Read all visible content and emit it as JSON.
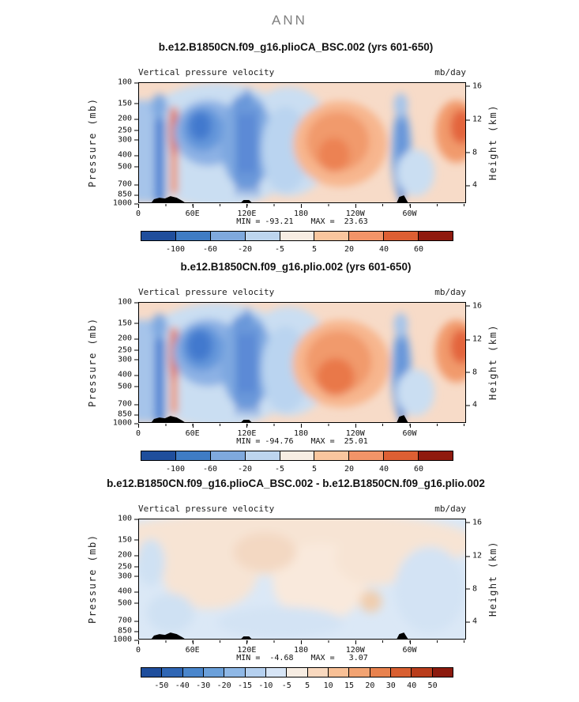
{
  "figure_title": "ANN",
  "chart_data": [
    {
      "type": "heatmap",
      "title": "b.e12.B1850CN.f09_g16.plioCA_BSC.002 (yrs 601-650)",
      "field_label": "Vertical pressure velocity",
      "units": "mb/day",
      "xticks": [
        "0",
        "60E",
        "120E",
        "180",
        "120W",
        "60W"
      ],
      "ylabel_left": "Pressure (mb)",
      "yticks_left": [
        "100",
        "150",
        "200",
        "250",
        "300",
        "400",
        "500",
        "700",
        "850",
        "1000"
      ],
      "ylabel_right": "Height (km)",
      "yticks_right": [
        "16",
        "12",
        "8",
        "4"
      ],
      "y_range_mb": [
        100,
        1000
      ],
      "min": -93.21,
      "max": 23.63,
      "min_label": "MIN = -93.21",
      "max_label": "MAX =  23.63",
      "contour_levels": [
        -100,
        -60,
        -20,
        -5,
        5,
        20,
        40,
        60
      ],
      "colorbar_ticks": [
        "-100",
        "-60",
        "-20",
        "-5",
        "5",
        "20",
        "40",
        "60"
      ],
      "colorbar_colors": [
        "#1f4e9c",
        "#3f7cc4",
        "#7fa9dd",
        "#bdd5ee",
        "#f7ede3",
        "#f9c69e",
        "#f29468",
        "#dd5f33",
        "#8f1a0e"
      ],
      "description": "Longitude-pressure section of annual-mean vertical pressure velocity. Strong negative (blue, ascent) centers over 60E-180 and in a narrow column near 60W; positive (orange, subsidence) centers over 180-120W and near the right edge; black surface topography near 20-50E, 120E and 60W."
    },
    {
      "type": "heatmap",
      "title": "b.e12.B1850CN.f09_g16.plio.002 (yrs 601-650)",
      "field_label": "Vertical pressure velocity",
      "units": "mb/day",
      "xticks": [
        "0",
        "60E",
        "120E",
        "180",
        "120W",
        "60W"
      ],
      "ylabel_left": "Pressure (mb)",
      "yticks_left": [
        "100",
        "150",
        "200",
        "250",
        "300",
        "400",
        "500",
        "700",
        "850",
        "1000"
      ],
      "ylabel_right": "Height (km)",
      "yticks_right": [
        "16",
        "12",
        "8",
        "4"
      ],
      "y_range_mb": [
        100,
        1000
      ],
      "min": -94.76,
      "max": 25.01,
      "min_label": "MIN = -94.76",
      "max_label": "MAX =  25.01",
      "contour_levels": [
        -100,
        -60,
        -20,
        -5,
        5,
        20,
        40,
        60
      ],
      "colorbar_ticks": [
        "-100",
        "-60",
        "-20",
        "-5",
        "5",
        "20",
        "40",
        "60"
      ],
      "colorbar_colors": [
        "#1f4e9c",
        "#3f7cc4",
        "#7fa9dd",
        "#bdd5ee",
        "#f7ede3",
        "#f9c69e",
        "#f29468",
        "#dd5f33",
        "#8f1a0e"
      ],
      "description": "Same field for the plio.002 control run: very similar pattern of ascent over the warm pool (60E-180) and near 60W, subsidence over the eastern Pacific (180-120W) and near the right edge."
    },
    {
      "type": "heatmap",
      "title": "b.e12.B1850CN.f09_g16.plioCA_BSC.002 - b.e12.B1850CN.f09_g16.plio.002",
      "field_label": "Vertical pressure velocity",
      "units": "mb/day",
      "xticks": [
        "0",
        "60E",
        "120E",
        "180",
        "120W",
        "60W"
      ],
      "ylabel_left": "Pressure (mb)",
      "yticks_left": [
        "100",
        "150",
        "200",
        "250",
        "300",
        "400",
        "500",
        "700",
        "850",
        "1000"
      ],
      "ylabel_right": "Height (km)",
      "yticks_right": [
        "16",
        "12",
        "8",
        "4"
      ],
      "y_range_mb": [
        100,
        1000
      ],
      "min": -4.68,
      "max": 3.07,
      "min_label": "MIN =  -4.68",
      "max_label": "MAX =   3.07",
      "contour_levels": [
        -50,
        -40,
        -30,
        -20,
        -15,
        -10,
        -5,
        5,
        10,
        15,
        20,
        30,
        40,
        50
      ],
      "colorbar_ticks": [
        "-50",
        "-40",
        "-30",
        "-20",
        "-15",
        "-10",
        "-5",
        "5",
        "10",
        "15",
        "20",
        "30",
        "40",
        "50"
      ],
      "colorbar_colors": [
        "#1f4e9c",
        "#2f66b4",
        "#4a86cc",
        "#6ba0da",
        "#8fb8e6",
        "#b5d0ef",
        "#d7e5f6",
        "#f7ede3",
        "#f9d9bf",
        "#f8c096",
        "#f2a372",
        "#e8824e",
        "#d85f31",
        "#b93d1c",
        "#8c1a0e"
      ],
      "description": "Difference field (BSC minus control): weak amplitudes only, pale peach (small positive) in the upper troposphere and pale blue (small negative) elsewhere; same black topography outline."
    }
  ]
}
